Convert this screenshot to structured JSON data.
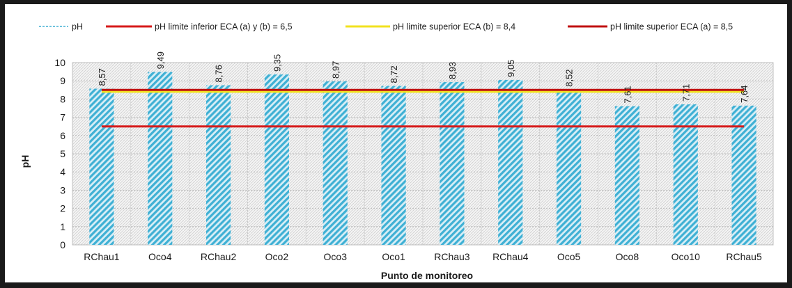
{
  "chart_data": {
    "type": "bar",
    "categories": [
      "RChau1",
      "Oco4",
      "RChau2",
      "Oco2",
      "Oco3",
      "Oco1",
      "RChau3",
      "RChau4",
      "Oco5",
      "Oco8",
      "Oco10",
      "RChau5"
    ],
    "series": [
      {
        "name": "pH",
        "type": "bar",
        "values": [
          8.57,
          9.49,
          8.76,
          9.35,
          8.97,
          8.72,
          8.93,
          9.05,
          8.52,
          7.61,
          7.71,
          7.64
        ],
        "color": "#4bb6d6"
      },
      {
        "name": "pH limite inferior ECA (a) y (b)  = 6,5",
        "type": "line",
        "values": [
          6.5,
          6.5,
          6.5,
          6.5,
          6.5,
          6.5,
          6.5,
          6.5,
          6.5,
          6.5,
          6.5,
          6.5
        ],
        "color": "#d61a1a"
      },
      {
        "name": "pH limite superior ECA (b) = 8,4",
        "type": "line",
        "values": [
          8.4,
          8.4,
          8.4,
          8.4,
          8.4,
          8.4,
          8.4,
          8.4,
          8.4,
          8.4,
          8.4,
          8.4
        ],
        "color": "#f2e21f"
      },
      {
        "name": "pH limite superior ECA (a) = 8,5",
        "type": "line",
        "values": [
          8.5,
          8.5,
          8.5,
          8.5,
          8.5,
          8.5,
          8.5,
          8.5,
          8.5,
          8.5,
          8.5,
          8.5
        ],
        "color": "#c01010"
      }
    ],
    "data_labels": [
      "8,57",
      "9,49",
      "8,76",
      "9,35",
      "8,97",
      "8,72",
      "8,93",
      "9,05",
      "8,52",
      "7,61",
      "7,71",
      "7,64"
    ],
    "yticks": [
      "0",
      "1",
      "2",
      "3",
      "4",
      "5",
      "6",
      "7",
      "8",
      "9",
      "10"
    ],
    "xlabel": "Punto de monitoreo",
    "ylabel": "pH",
    "ylim": [
      0,
      10
    ],
    "grid": true,
    "legend_position": "top"
  }
}
